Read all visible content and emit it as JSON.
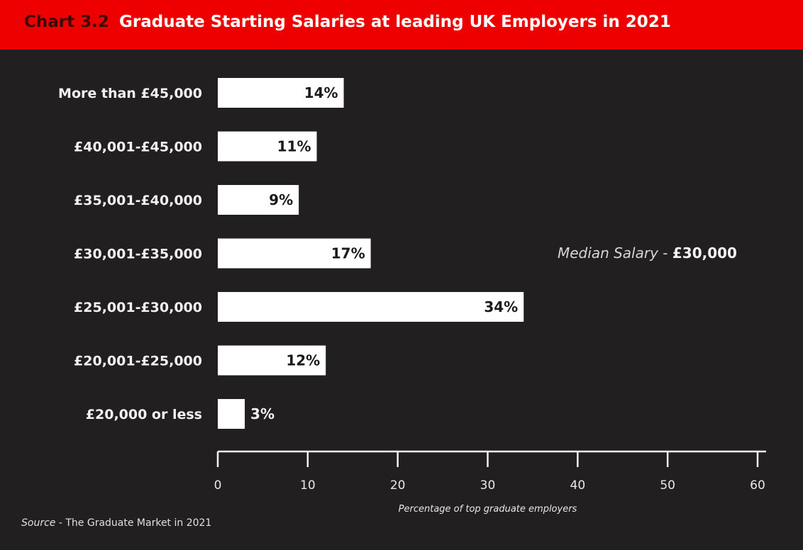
{
  "header": {
    "chart_number": "Chart 3.2",
    "title": "Graduate Starting Salaries at leading UK Employers in 2021"
  },
  "median": {
    "label": "Median Salary",
    "separator": " - ",
    "value": "£30,000"
  },
  "source": {
    "label": "Source",
    "separator": " - ",
    "text": "The Graduate Market in 2021"
  },
  "colors": {
    "background": "#221f20",
    "header": "#ee0000",
    "bar": "#ffffff",
    "text": "#f2f2f2"
  },
  "chart_data": {
    "type": "bar",
    "orientation": "horizontal",
    "title": "Graduate Starting Salaries at leading UK Employers in 2021",
    "xlabel": "Percentage of top graduate employers",
    "ylabel": "",
    "xlim": [
      0,
      60
    ],
    "xticks": [
      0,
      10,
      20,
      30,
      40,
      50,
      60
    ],
    "grid": false,
    "categories": [
      "More than £45,000",
      "£40,001-£45,000",
      "£35,001-£40,000",
      "£30,001-£35,000",
      "£25,001-£30,000",
      "£20,001-£25,000",
      "£20,000 or less"
    ],
    "values": [
      14,
      11,
      9,
      17,
      34,
      12,
      3
    ],
    "value_labels": [
      "14%",
      "11%",
      "9%",
      "17%",
      "34%",
      "12%",
      "3%"
    ]
  }
}
